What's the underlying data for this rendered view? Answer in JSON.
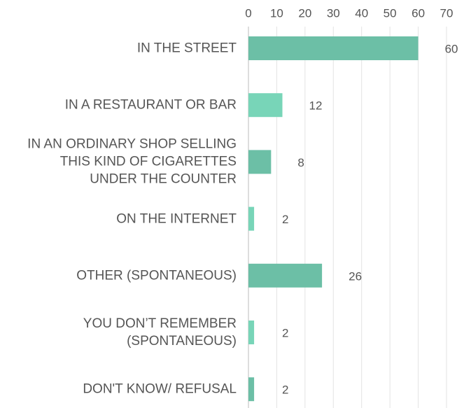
{
  "chart_data": {
    "type": "bar",
    "orientation": "horizontal",
    "categories": [
      "IN THE STREET",
      "IN A RESTAURANT OR BAR",
      "IN AN ORDINARY SHOP SELLING\nTHIS KIND OF CIGARETTES\nUNDER THE COUNTER",
      "ON THE INTERNET",
      "OTHER (SPONTANEOUS)",
      "YOU DON’T REMEMBER\n(SPONTANEOUS)",
      "DON'T KNOW/ REFUSAL"
    ],
    "values": [
      60,
      12,
      8,
      2,
      26,
      2,
      2
    ],
    "colors": [
      "#6cbfa6",
      "#78d5b8",
      "#6cbfa6",
      "#78d5b8",
      "#6cbfa6",
      "#78d5b8",
      "#6cbfa6"
    ],
    "xlim": [
      0,
      70
    ],
    "xticks": [
      0,
      10,
      20,
      30,
      40,
      50,
      60,
      70
    ],
    "grid": true
  }
}
